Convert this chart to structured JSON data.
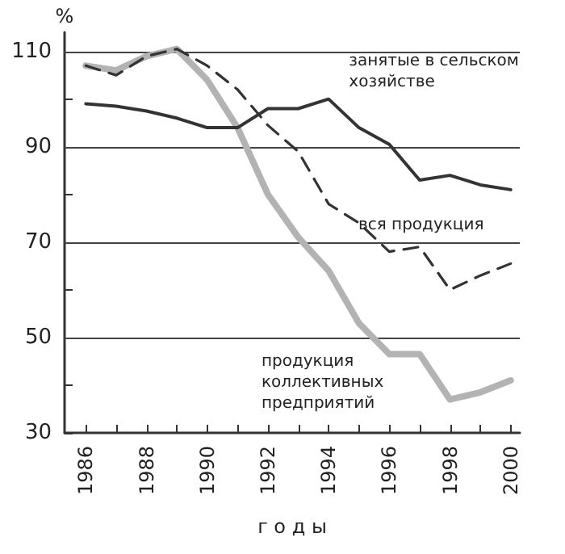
{
  "chart_data": {
    "type": "line",
    "ylabel": "%",
    "xlabel": "г о д ы",
    "x": [
      1986,
      1987,
      1988,
      1989,
      1990,
      1991,
      1992,
      1993,
      1994,
      1995,
      1996,
      1997,
      1998,
      1999,
      2000
    ],
    "series": [
      {
        "name": "занятые в сельском хозяйстве",
        "color": "#333333",
        "line_style": "solid",
        "values": [
          99,
          98.5,
          97.5,
          96,
          94,
          94,
          98,
          98,
          100,
          94,
          90.5,
          83,
          84,
          82,
          81
        ]
      },
      {
        "name": "вся продукция",
        "color": "#333333",
        "line_style": "dashed",
        "values": [
          107,
          105,
          109,
          110.5,
          107,
          102,
          94.5,
          89,
          78,
          74,
          68,
          69,
          60,
          63,
          65.5
        ]
      },
      {
        "name": "продукция коллективных предприятий",
        "color": "#b3b3b3",
        "line_style": "solid",
        "values": [
          107,
          106,
          109,
          110.5,
          104,
          94,
          80,
          71,
          64,
          53,
          46.5,
          46.5,
          37,
          38.5,
          41
        ]
      }
    ],
    "xlim": [
      1985.3,
      2000.3
    ],
    "xticks": [
      1986,
      {
        "value": 1987,
        "label": null
      },
      1988,
      {
        "value": 1989,
        "label": null
      },
      1990,
      {
        "value": 1991,
        "label": null
      },
      1992,
      {
        "value": 1993,
        "label": null
      },
      1994,
      {
        "value": 1995,
        "label": null
      },
      1996,
      {
        "value": 1997,
        "label": null
      },
      1998,
      {
        "value": 1999,
        "label": null
      },
      2000
    ],
    "ylim": [
      30,
      114
    ],
    "yticks": [
      30,
      {
        "value": 40,
        "label": null
      },
      50,
      {
        "value": 60,
        "label": null
      },
      70,
      {
        "value": 80,
        "label": null
      },
      90,
      {
        "value": 100,
        "label": null
      },
      110
    ],
    "grid": "y",
    "legend": false,
    "marker": "none"
  }
}
